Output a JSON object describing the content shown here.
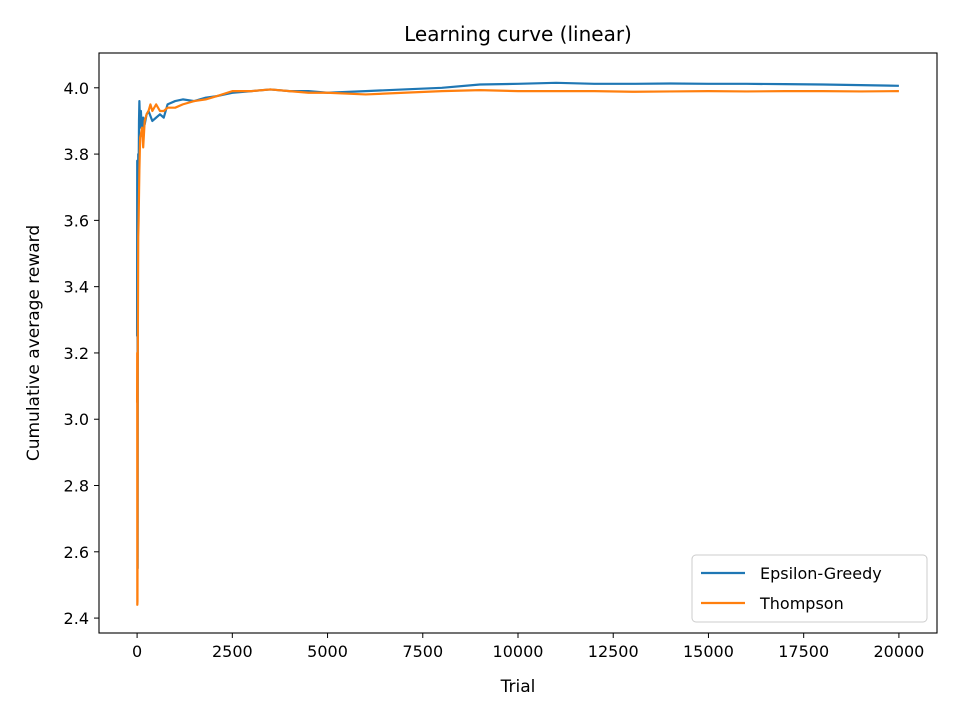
{
  "chart_data": {
    "type": "line",
    "title": "Learning curve (linear)",
    "xlabel": "Trial",
    "ylabel": "Cumulative average reward",
    "xlim": [
      -1000,
      21000
    ],
    "ylim": [
      2.355,
      4.105
    ],
    "xticks": [
      0,
      2500,
      5000,
      7500,
      10000,
      12500,
      15000,
      17500,
      20000
    ],
    "yticks": [
      2.4,
      2.6,
      2.8,
      3.0,
      3.2,
      3.4,
      3.6,
      3.8,
      4.0
    ],
    "xtick_labels": [
      "0",
      "2500",
      "5000",
      "7500",
      "10000",
      "12500",
      "15000",
      "17500",
      "20000"
    ],
    "ytick_labels": [
      "2.4",
      "2.6",
      "2.8",
      "3.0",
      "3.2",
      "3.4",
      "3.6",
      "3.8",
      "4.0"
    ],
    "grid": false,
    "legend_position": "lower-right",
    "series": [
      {
        "name": "Epsilon-Greedy",
        "color": "#1f77b4",
        "x": [
          0,
          3,
          6,
          10,
          15,
          20,
          30,
          40,
          50,
          60,
          80,
          100,
          130,
          160,
          200,
          250,
          300,
          400,
          500,
          600,
          700,
          800,
          1000,
          1200,
          1500,
          1800,
          2100,
          2500,
          3000,
          3500,
          4000,
          4500,
          5000,
          6000,
          7000,
          8000,
          9000,
          10000,
          11000,
          12000,
          13000,
          14000,
          15000,
          16000,
          17000,
          18000,
          19000,
          20000
        ],
        "y": [
          3.25,
          3.78,
          3.55,
          3.7,
          2.55,
          3.6,
          3.8,
          3.72,
          3.9,
          3.96,
          3.88,
          3.93,
          3.86,
          3.91,
          3.89,
          3.92,
          3.93,
          3.9,
          3.91,
          3.92,
          3.91,
          3.95,
          3.96,
          3.965,
          3.96,
          3.97,
          3.975,
          3.985,
          3.99,
          3.995,
          3.99,
          3.99,
          3.985,
          3.99,
          3.995,
          4.0,
          4.01,
          4.012,
          4.015,
          4.012,
          4.012,
          4.013,
          4.012,
          4.012,
          4.011,
          4.01,
          4.008,
          4.006
        ]
      },
      {
        "name": "Thompson",
        "color": "#ff7f0e",
        "x": [
          0,
          3,
          6,
          10,
          15,
          20,
          30,
          40,
          60,
          80,
          100,
          130,
          160,
          200,
          250,
          300,
          350,
          400,
          500,
          600,
          700,
          800,
          1000,
          1200,
          1500,
          1800,
          2100,
          2500,
          3000,
          3500,
          4000,
          4500,
          5000,
          6000,
          7000,
          8000,
          9000,
          10000,
          11000,
          12000,
          13000,
          14000,
          15000,
          16000,
          17000,
          18000,
          19000,
          20000
        ],
        "y": [
          3.05,
          3.2,
          2.44,
          2.45,
          3.1,
          3.25,
          3.55,
          3.6,
          3.75,
          3.85,
          3.86,
          3.88,
          3.82,
          3.9,
          3.92,
          3.93,
          3.95,
          3.93,
          3.95,
          3.93,
          3.93,
          3.94,
          3.94,
          3.95,
          3.96,
          3.965,
          3.975,
          3.99,
          3.99,
          3.995,
          3.99,
          3.985,
          3.985,
          3.98,
          3.985,
          3.99,
          3.993,
          3.99,
          3.99,
          3.99,
          3.988,
          3.989,
          3.99,
          3.989,
          3.99,
          3.99,
          3.989,
          3.99
        ]
      }
    ]
  }
}
